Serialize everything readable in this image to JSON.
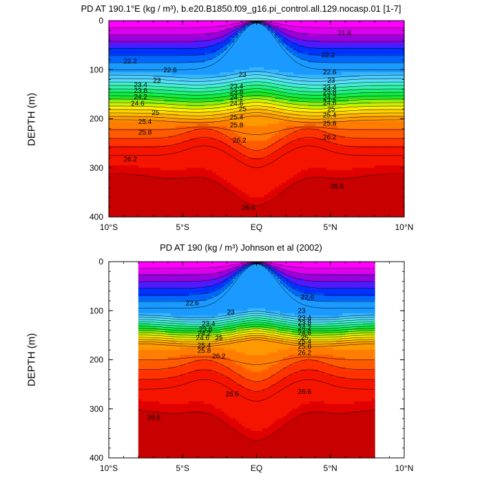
{
  "chart_data": [
    {
      "type": "contour",
      "title": "PD AT 190.1°E (kg / m³), b.e20.B1850.f09_g16.pi_control.all.129.nocasp.01 [1-7]",
      "ylabel": "DEPTH (m)",
      "xlabel": "",
      "x_ticks": [
        "10°S",
        "5°S",
        "EQ",
        "5°N",
        "10°N"
      ],
      "x_tick_values": [
        -10,
        -5,
        0,
        5,
        10
      ],
      "y_ticks": [
        "0",
        "100",
        "200",
        "300",
        "400"
      ],
      "y_tick_values": [
        0,
        100,
        200,
        300,
        400
      ],
      "xlim": [
        -10,
        10
      ],
      "ylim": [
        0,
        400
      ],
      "y_inverted": true,
      "data_xlim": [
        -10,
        10
      ],
      "contour_levels": [
        21.8,
        22.2,
        22.6,
        23,
        23.4,
        23.8,
        24.2,
        24.6,
        25,
        25.4,
        25.8,
        26.2,
        26.6
      ],
      "labels": [
        {
          "text": "21.8",
          "x": 5.5,
          "y": 25
        },
        {
          "text": "22.2",
          "x": -9.0,
          "y": 83
        },
        {
          "text": "22.2",
          "x": 4.4,
          "y": 70
        },
        {
          "text": "22.6",
          "x": -6.3,
          "y": 101
        },
        {
          "text": "22.6",
          "x": 4.5,
          "y": 105
        },
        {
          "text": "23",
          "x": -7.0,
          "y": 122
        },
        {
          "text": "23",
          "x": -1.2,
          "y": 110
        },
        {
          "text": "23",
          "x": 4.8,
          "y": 122
        },
        {
          "text": "23.4",
          "x": -8.3,
          "y": 131
        },
        {
          "text": "23.8",
          "x": -8.3,
          "y": 143
        },
        {
          "text": "24.2",
          "x": -8.3,
          "y": 156
        },
        {
          "text": "24.6",
          "x": -8.5,
          "y": 169
        },
        {
          "text": "25",
          "x": -7.1,
          "y": 188
        },
        {
          "text": "25.4",
          "x": -8.0,
          "y": 206
        },
        {
          "text": "25.8",
          "x": -8.0,
          "y": 228
        },
        {
          "text": "23.4",
          "x": -1.8,
          "y": 134
        },
        {
          "text": "23.8",
          "x": -1.8,
          "y": 146
        },
        {
          "text": "24.2",
          "x": -1.8,
          "y": 157
        },
        {
          "text": "24.6",
          "x": -1.8,
          "y": 169
        },
        {
          "text": "25",
          "x": -1.2,
          "y": 180
        },
        {
          "text": "25.4",
          "x": -1.8,
          "y": 197
        },
        {
          "text": "25.8",
          "x": -1.8,
          "y": 213
        },
        {
          "text": "26.2",
          "x": -1.6,
          "y": 244
        },
        {
          "text": "23.4",
          "x": 4.5,
          "y": 136
        },
        {
          "text": "23.8",
          "x": 4.5,
          "y": 146
        },
        {
          "text": "24.2",
          "x": 4.5,
          "y": 157
        },
        {
          "text": "24.6",
          "x": 4.5,
          "y": 168
        },
        {
          "text": "25",
          "x": 4.8,
          "y": 180
        },
        {
          "text": "25.4",
          "x": 4.5,
          "y": 193
        },
        {
          "text": "25.8",
          "x": 4.5,
          "y": 210
        },
        {
          "text": "26.2",
          "x": 4.5,
          "y": 238
        },
        {
          "text": "26.2",
          "x": -9.0,
          "y": 283
        },
        {
          "text": "26.6",
          "x": 5.0,
          "y": 338
        },
        {
          "text": "26.6",
          "x": -1.0,
          "y": 382
        }
      ],
      "bands": [
        {
          "color": "#ff00ff",
          "top": "A",
          "bottom": [
            [
              -10,
              40
            ],
            [
              -8,
              40
            ],
            [
              -6,
              32
            ],
            [
              -5,
              18
            ],
            [
              -4.5,
              0
            ]
          ]
        },
        {
          "color": "#ff00ff",
          "top": "A",
          "bottom": [
            [
              10,
              40
            ],
            [
              8,
              40
            ],
            [
              6,
              32
            ],
            [
              5,
              18
            ],
            [
              4.6,
              0
            ]
          ]
        }
      ]
    },
    {
      "type": "contour",
      "title": "PD AT 190 (kg / m³) Johnson et al (2002)",
      "ylabel": "DEPTH (m)",
      "xlabel": "",
      "x_ticks": [
        "10°S",
        "5°S",
        "EQ",
        "5°N",
        "10°N"
      ],
      "x_tick_values": [
        -10,
        -5,
        0,
        5,
        10
      ],
      "y_ticks": [
        "0",
        "100",
        "200",
        "300",
        "400"
      ],
      "y_tick_values": [
        0,
        100,
        200,
        300,
        400
      ],
      "xlim": [
        -10,
        10
      ],
      "ylim": [
        0,
        400
      ],
      "y_inverted": true,
      "data_xlim": [
        -8,
        8
      ],
      "labels": [
        {
          "text": "22.6",
          "x": -4.8,
          "y": 85
        },
        {
          "text": "22.6",
          "x": 3.0,
          "y": 73
        },
        {
          "text": "23",
          "x": -2.0,
          "y": 103
        },
        {
          "text": "23",
          "x": 2.8,
          "y": 100
        },
        {
          "text": "23.4",
          "x": -3.7,
          "y": 127
        },
        {
          "text": "23.8",
          "x": -3.9,
          "y": 138
        },
        {
          "text": "24.2",
          "x": -4.0,
          "y": 147
        },
        {
          "text": "24.6",
          "x": -4.1,
          "y": 156
        },
        {
          "text": "25",
          "x": -2.8,
          "y": 156
        },
        {
          "text": "25.4",
          "x": -4.0,
          "y": 171
        },
        {
          "text": "25.8",
          "x": -4.0,
          "y": 182
        },
        {
          "text": "26.2",
          "x": -3.0,
          "y": 193
        },
        {
          "text": "23.4",
          "x": 2.8,
          "y": 115
        },
        {
          "text": "23.8",
          "x": 2.8,
          "y": 125
        },
        {
          "text": "24.2",
          "x": 2.8,
          "y": 135
        },
        {
          "text": "24.6",
          "x": 2.8,
          "y": 145
        },
        {
          "text": "25",
          "x": 3.0,
          "y": 155
        },
        {
          "text": "25.4",
          "x": 2.8,
          "y": 163
        },
        {
          "text": "25.8",
          "x": 2.8,
          "y": 173
        },
        {
          "text": "26.2",
          "x": 2.8,
          "y": 186
        },
        {
          "text": "26.6",
          "x": -2.1,
          "y": 270
        },
        {
          "text": "26.6",
          "x": 2.8,
          "y": 265
        },
        {
          "text": "26.6",
          "x": -7.4,
          "y": 318
        }
      ]
    }
  ]
}
